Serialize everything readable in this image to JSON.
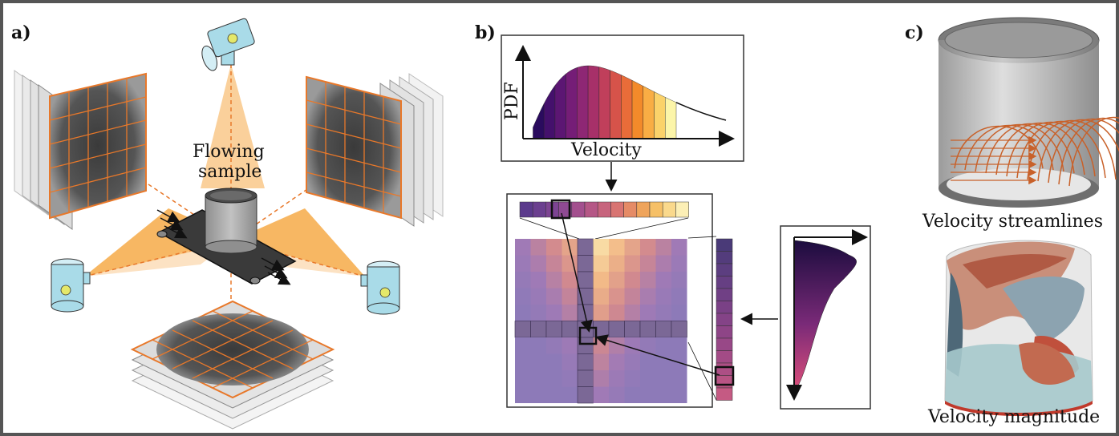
{
  "panels": {
    "a": {
      "label": "a)",
      "sample_label_line1": "Flowing",
      "sample_label_line2": "sample"
    },
    "b": {
      "label": "b)",
      "pdf_ylabel": "PDF",
      "pdf_xlabel": "Velocity"
    },
    "c": {
      "label": "c)",
      "top_caption": "Velocity streamlines",
      "bottom_caption": "Velocity magnitude"
    }
  },
  "colors": {
    "frame": "#555555",
    "grid_orange": "#e8782a",
    "beam_orange": "#f5a030",
    "source_blue": "#a9dbe8",
    "stream_orange": "#c8612a",
    "cylinder_gray": "#a0a0a0",
    "conveyor": "#333333"
  },
  "icons": {
    "source": "radiation-source-icon",
    "belt": "conveyor-belt-icon"
  },
  "colormap": [
    "#2a0b5e",
    "#44106c",
    "#5c1673",
    "#751d77",
    "#8e2774",
    "#a73069",
    "#c03f5b",
    "#d6534a",
    "#e96c39",
    "#f38a2a",
    "#f9ad44",
    "#fbd26a",
    "#fcf5a9"
  ]
}
